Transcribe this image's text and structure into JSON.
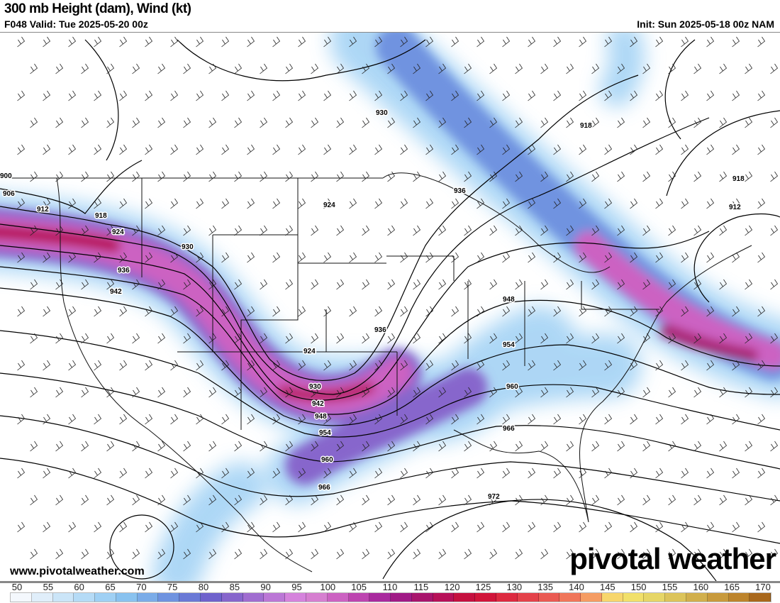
{
  "header": {
    "title": "300 mb Height (dam), Wind (kt)",
    "valid": "F048 Valid: Tue 2025-05-20 00z",
    "init": "Init: Sun 2025-05-18 00z NAM"
  },
  "footer": {
    "website": "www.pivotalweather.com",
    "brand": "pivotal weather"
  },
  "contour_labels": [
    "900",
    "906",
    "912",
    "918",
    "924",
    "930",
    "936",
    "942",
    "948",
    "954",
    "960",
    "966",
    "972",
    "924",
    "930",
    "936",
    "942",
    "948",
    "954",
    "960",
    "966",
    "918",
    "918",
    "912",
    "924",
    "930",
    "936"
  ],
  "colorbar": {
    "ticks": [
      "50",
      "55",
      "60",
      "65",
      "70",
      "75",
      "80",
      "85",
      "90",
      "95",
      "100",
      "105",
      "110",
      "115",
      "120",
      "125",
      "130",
      "135",
      "140",
      "145",
      "150",
      "155",
      "160",
      "165",
      "170"
    ],
    "colors": [
      "#f4f8fd",
      "#e0eefa",
      "#cbe5f8",
      "#b5dbf6",
      "#9fd0f4",
      "#89c2ef",
      "#7bace8",
      "#6f93e0",
      "#6a79d6",
      "#6f62cc",
      "#8766cc",
      "#a06dd0",
      "#bb77d6",
      "#d583dc",
      "#d67fd0",
      "#cc62c2",
      "#bd45b0",
      "#a92a9e",
      "#a01a86",
      "#a8146c",
      "#b71058",
      "#c5103f",
      "#d1153a",
      "#dd2a40",
      "#e4424a",
      "#ea5a52",
      "#f0765a",
      "#f59c63",
      "#f7d66c",
      "#f1e06a",
      "#e6d666",
      "#dcc45a",
      "#d1af4c",
      "#c89a3c",
      "#bd842c",
      "#a9681c"
    ]
  },
  "colors": {
    "jet_core": "#c0126e",
    "jet_mid": "#cc62c2",
    "jet_edge": "#6f93e0",
    "jet_outer": "#9fd0f4"
  }
}
